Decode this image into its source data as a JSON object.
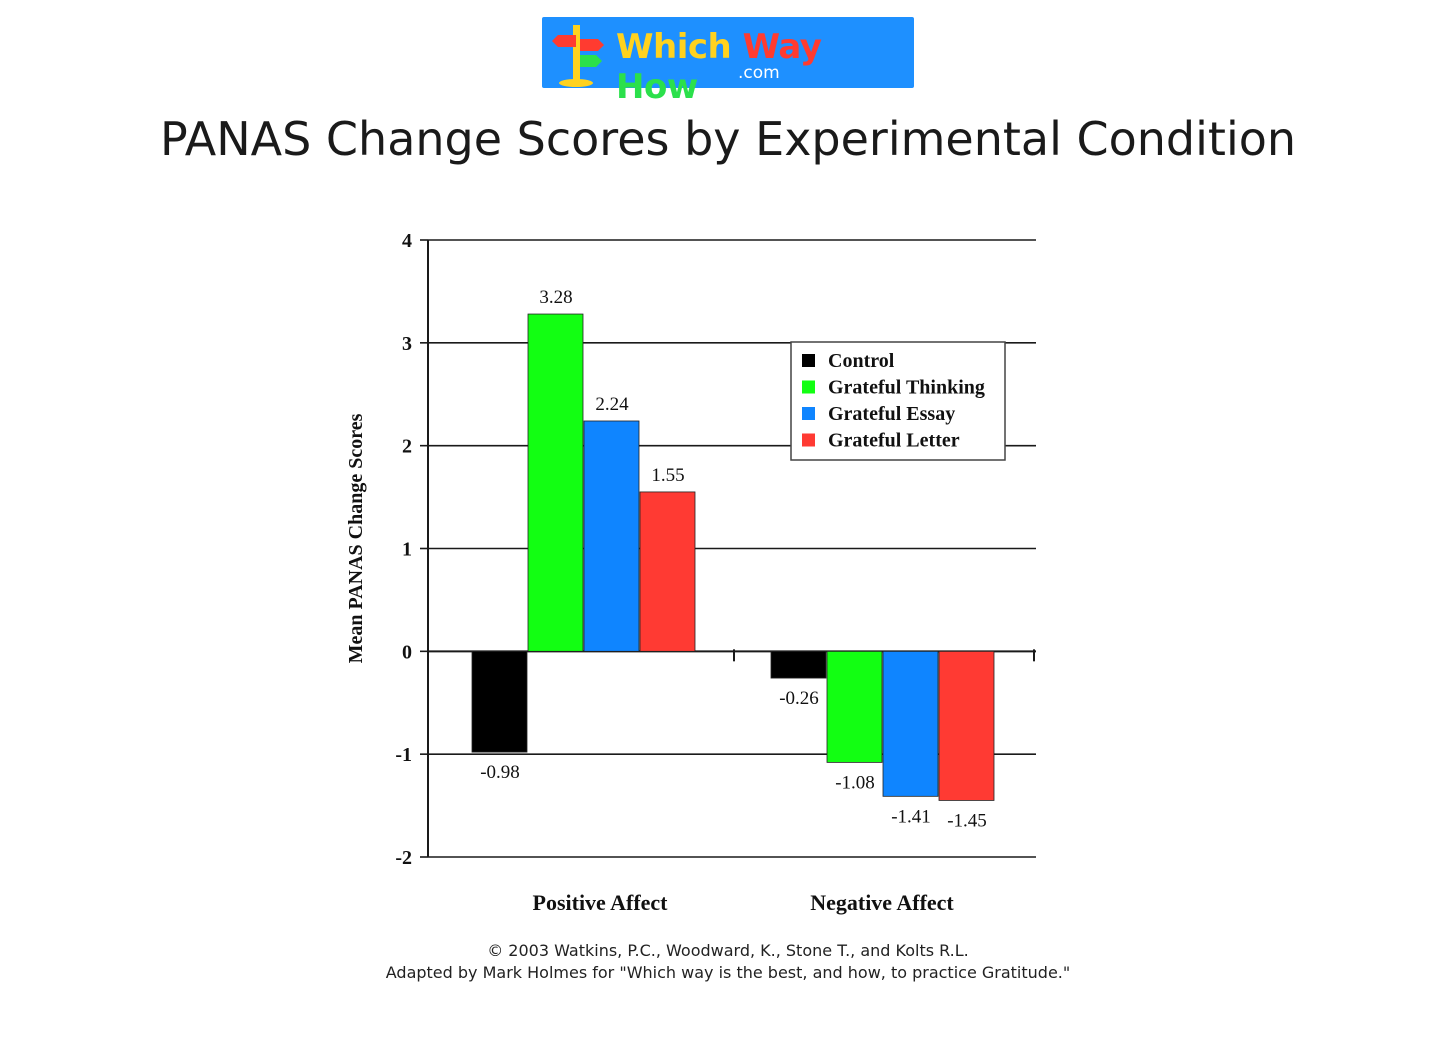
{
  "logo": {
    "word1": "Which",
    "word2": "Way",
    "word3": "How",
    "suffix": ".com",
    "icon": "signpost-icon",
    "background": "#1e90ff"
  },
  "page": {
    "title": "PANAS Change Scores by Experimental Condition"
  },
  "chart_data": {
    "type": "bar",
    "categories": [
      "Positive Affect",
      "Negative Affect"
    ],
    "series": [
      {
        "name": "Control",
        "color": "#000000",
        "values": [
          -0.98,
          -0.26
        ],
        "labels": [
          "-0.98",
          "-0.26"
        ]
      },
      {
        "name": "Grateful Thinking",
        "color": "#12ff12",
        "values": [
          3.28,
          -1.08
        ],
        "labels": [
          "3.28",
          "-1.08"
        ]
      },
      {
        "name": "Grateful Essay",
        "color": "#0f85ff",
        "values": [
          2.24,
          -1.41
        ],
        "labels": [
          "2.24",
          "-1.41"
        ]
      },
      {
        "name": "Grateful Letter",
        "color": "#ff3a33",
        "values": [
          1.55,
          -1.45
        ],
        "labels": [
          "1.55",
          "-1.45"
        ]
      }
    ],
    "ylabel": "Mean PANAS Change Scores",
    "ylim": [
      -2,
      4
    ],
    "yticks": [
      "4",
      "3",
      "2",
      "1",
      "0",
      "-1",
      "-2"
    ],
    "grid": true,
    "legend": "top-right"
  },
  "credits": {
    "line1": "© 2003 Watkins, P.C., Woodward, K., Stone T., and Kolts R.L.",
    "line2": "Adapted by Mark Holmes for \"Which way is the best, and how, to practice Gratitude.\""
  }
}
